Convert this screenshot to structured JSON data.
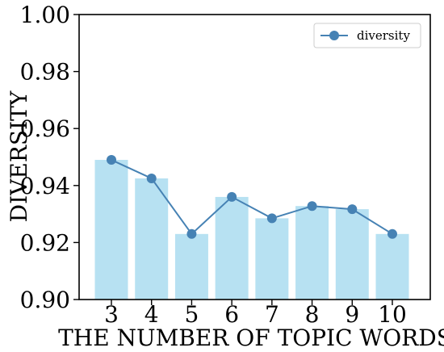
{
  "chart_data": {
    "type": "bar",
    "title": "",
    "xlabel": "THE NUMBER OF TOPIC WORDS",
    "ylabel": "DIVERSITY",
    "categories": [
      "3",
      "4",
      "5",
      "6",
      "7",
      "8",
      "9",
      "10"
    ],
    "values": [
      0.949,
      0.9425,
      0.923,
      0.936,
      0.9285,
      0.9328,
      0.9317,
      0.923
    ],
    "ylim": [
      0.9,
      1.0
    ],
    "yticks": [
      "0.90",
      "0.92",
      "0.94",
      "0.96",
      "0.98",
      "1.00"
    ],
    "series": [
      {
        "name": "diversity",
        "type": "line",
        "values": [
          0.949,
          0.9425,
          0.923,
          0.936,
          0.9285,
          0.9328,
          0.9317,
          0.923
        ]
      }
    ],
    "legend": {
      "position": "top-right",
      "entries": [
        "diversity"
      ]
    },
    "grid": false,
    "colors": {
      "bar": "#b7e1f2",
      "line": "#4682b4",
      "marker": "#4682b4"
    }
  }
}
